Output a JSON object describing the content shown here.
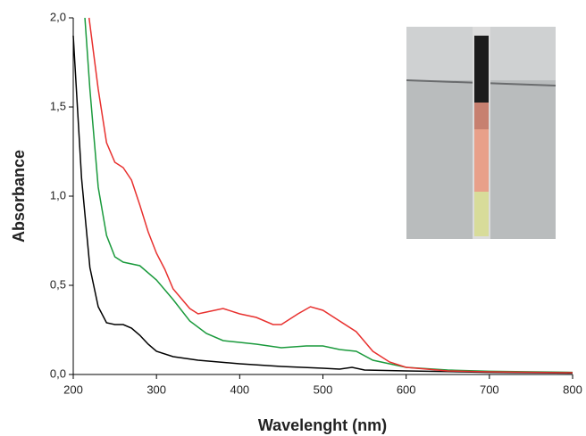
{
  "chart_data": {
    "type": "line",
    "xlabel": "Wavelenght (nm)",
    "ylabel": "Absorbance",
    "xlim": [
      200,
      800
    ],
    "ylim": [
      0,
      2
    ],
    "xticks": [
      200,
      300,
      400,
      500,
      600,
      700,
      800
    ],
    "yticks": [
      {
        "value": 0,
        "label": "0,0"
      },
      {
        "value": 0.5,
        "label": "0,5"
      },
      {
        "value": 1,
        "label": "1,0"
      },
      {
        "value": 1.5,
        "label": "1,5"
      },
      {
        "value": 2,
        "label": "2,0"
      }
    ],
    "series": [
      {
        "color": "#000000",
        "x": [
          200,
          210,
          220,
          230,
          240,
          250,
          260,
          270,
          280,
          290,
          300,
          320,
          350,
          400,
          450,
          500,
          520,
          535,
          550,
          600,
          700,
          800
        ],
        "values": [
          1.9,
          1.1,
          0.6,
          0.38,
          0.29,
          0.28,
          0.28,
          0.26,
          0.22,
          0.17,
          0.13,
          0.1,
          0.08,
          0.06,
          0.045,
          0.035,
          0.03,
          0.04,
          0.025,
          0.02,
          0.012,
          0.008
        ]
      },
      {
        "color": "#1a9a3c",
        "x": [
          214,
          220,
          230,
          240,
          250,
          260,
          280,
          300,
          320,
          340,
          360,
          380,
          400,
          420,
          450,
          480,
          500,
          520,
          540,
          560,
          600,
          650,
          700,
          800
        ],
        "values": [
          2.0,
          1.6,
          1.05,
          0.78,
          0.66,
          0.63,
          0.61,
          0.53,
          0.42,
          0.3,
          0.23,
          0.19,
          0.18,
          0.17,
          0.15,
          0.16,
          0.16,
          0.14,
          0.13,
          0.08,
          0.04,
          0.025,
          0.018,
          0.012
        ]
      },
      {
        "color": "#e8312f",
        "x": [
          219,
          230,
          240,
          250,
          260,
          270,
          280,
          290,
          300,
          310,
          320,
          340,
          350,
          360,
          380,
          400,
          420,
          440,
          450,
          470,
          485,
          500,
          520,
          540,
          560,
          580,
          600,
          650,
          700,
          800
        ],
        "values": [
          2.0,
          1.6,
          1.3,
          1.19,
          1.16,
          1.09,
          0.95,
          0.8,
          0.68,
          0.59,
          0.48,
          0.37,
          0.34,
          0.35,
          0.37,
          0.34,
          0.32,
          0.28,
          0.28,
          0.34,
          0.38,
          0.36,
          0.3,
          0.24,
          0.13,
          0.07,
          0.04,
          0.02,
          0.015,
          0.01
        ]
      }
    ]
  }
}
